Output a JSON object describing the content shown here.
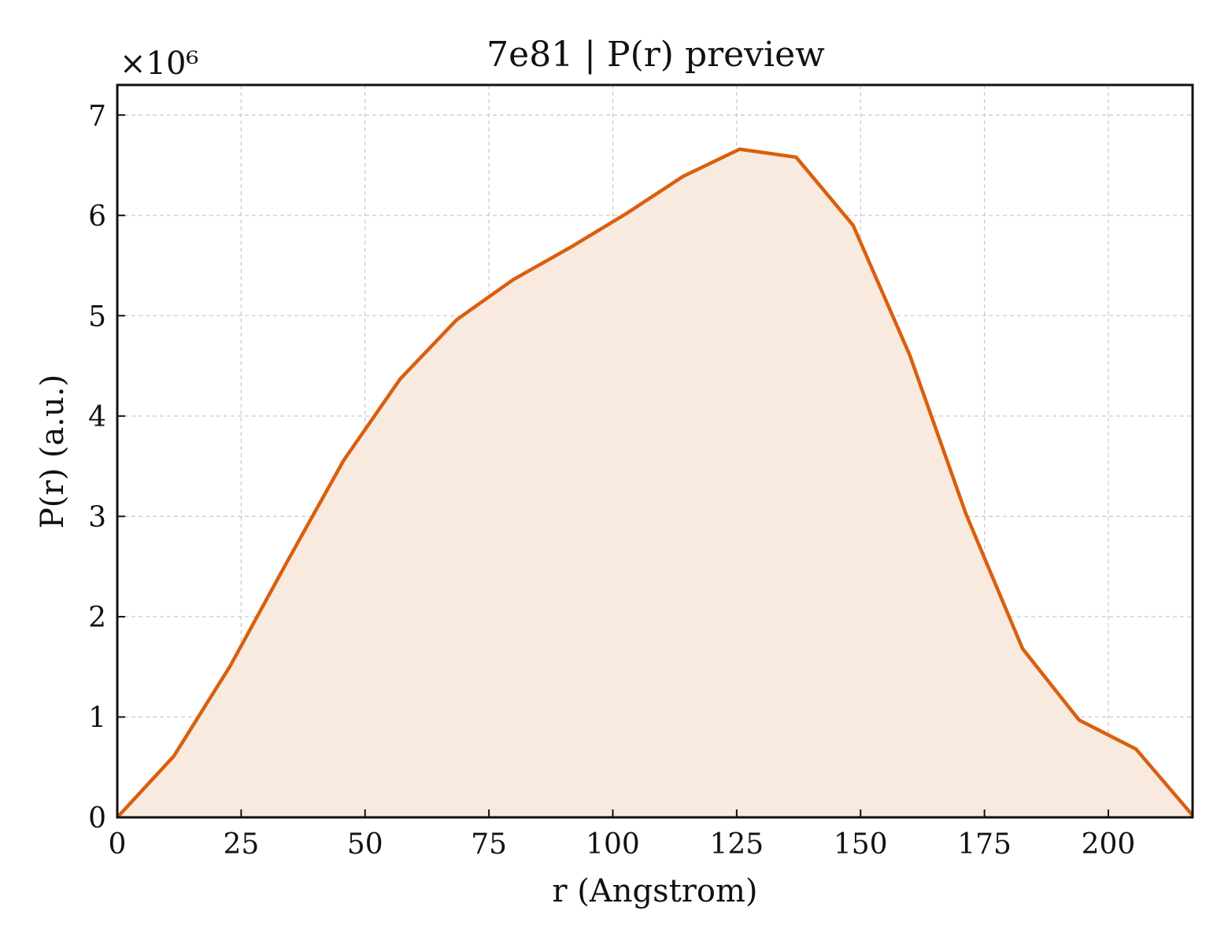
{
  "chart_data": {
    "type": "area",
    "title": "7e81 | P(r) preview",
    "xlabel": "r (Angstrom)",
    "ylabel": "P(r) (a.u.)",
    "y_multiplier": "×10⁶",
    "y_scale": 1000000,
    "xlim": [
      0,
      217
    ],
    "ylim": [
      0,
      7.3
    ],
    "x_ticks": [
      0,
      25,
      50,
      75,
      100,
      125,
      150,
      175,
      200
    ],
    "y_ticks": [
      0,
      1,
      2,
      3,
      4,
      5,
      6,
      7
    ],
    "grid": true,
    "series": [
      {
        "x": [
          0,
          11.4,
          22.8,
          34.3,
          45.7,
          57.1,
          68.5,
          79.9,
          91.4,
          102.8,
          114.2,
          125.6,
          137.0,
          148.5,
          159.9,
          171.3,
          182.7,
          194.1,
          205.6,
          217
        ],
        "y": [
          0,
          0.61,
          1.51,
          2.55,
          3.56,
          4.37,
          4.96,
          5.36,
          5.68,
          6.02,
          6.39,
          6.66,
          6.58,
          5.9,
          4.61,
          3.02,
          1.68,
          0.97,
          0.68,
          0.02
        ],
        "color": "#d95f0e",
        "fill_color": "#f8eadf"
      }
    ]
  }
}
